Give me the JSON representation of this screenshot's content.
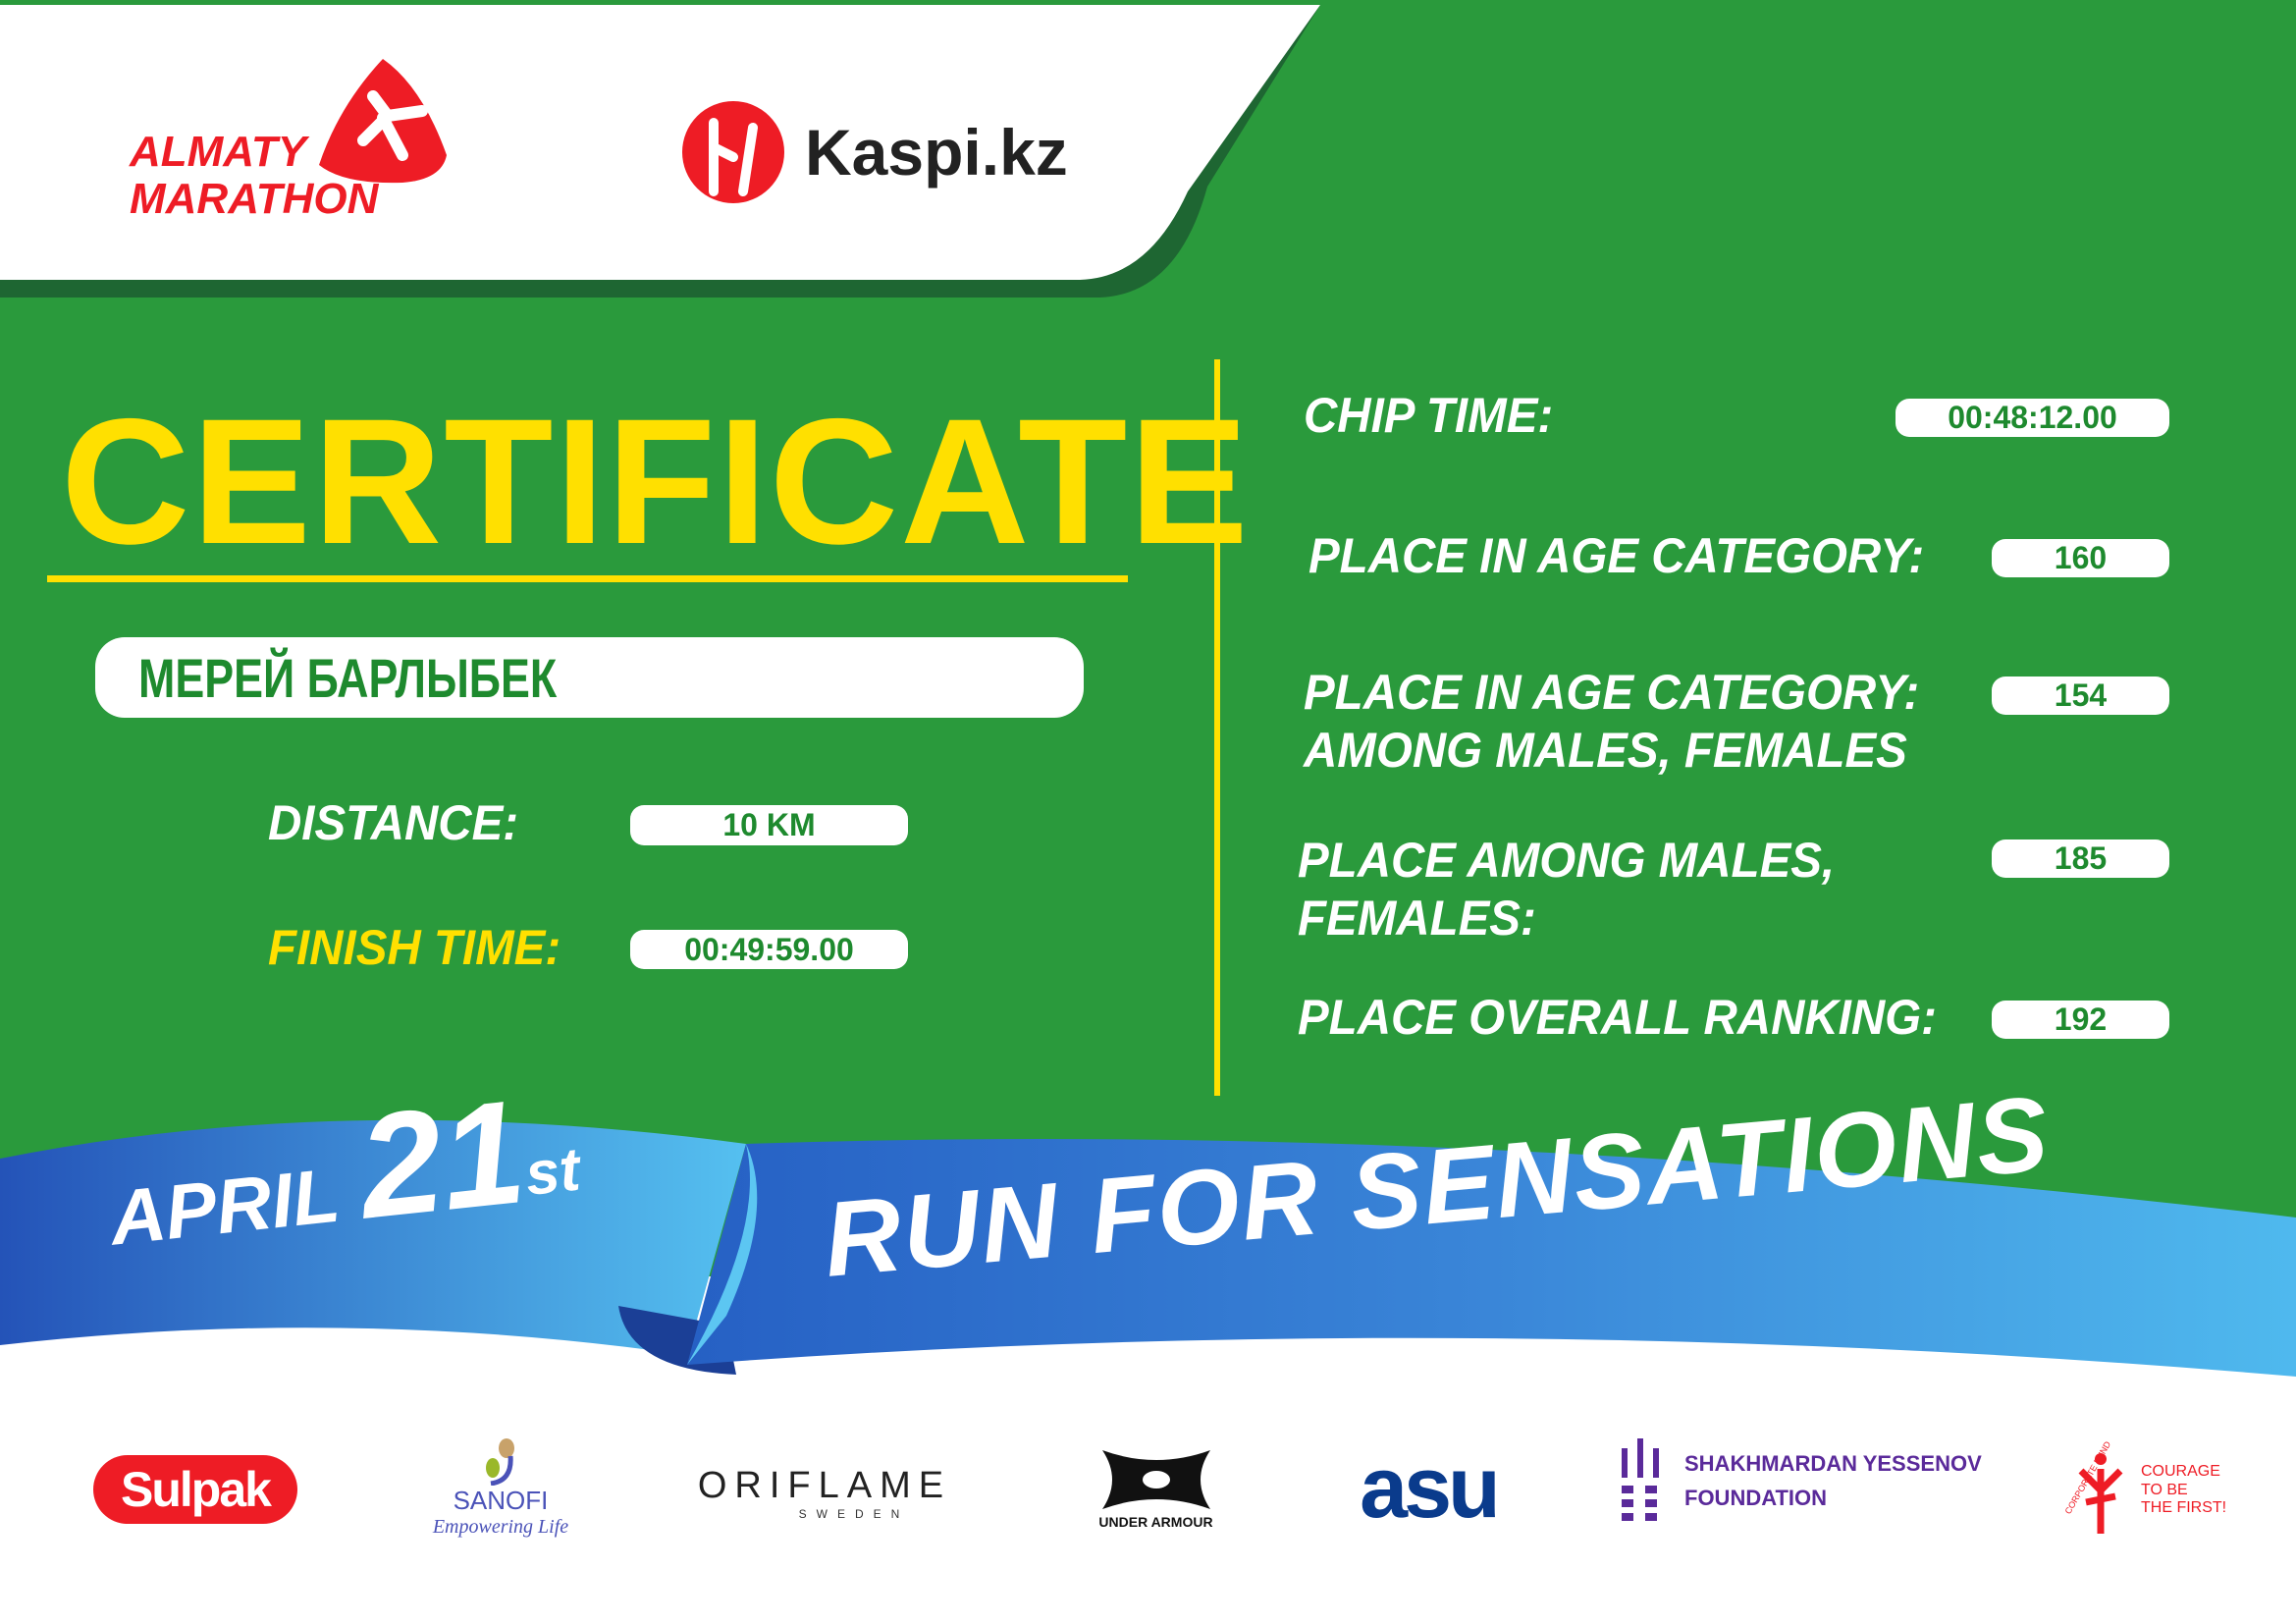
{
  "header": {
    "event_logo": "ALMATY MARATHON",
    "event_logo_line1": "ALMATY",
    "event_logo_line2": "MARATHON",
    "sponsor_logo": "Kaspi.kz"
  },
  "certificate": {
    "title": "CERTIFICATE",
    "participant_name": "МЕРЕЙ БАРЛЫБЕК",
    "distance_label": "DISTANCE:",
    "distance_value": "10 KM",
    "finish_time_label": "FINISH TIME:",
    "finish_time_value": "00:49:59.00",
    "chip_time_label": "CHIP TIME:",
    "chip_time_value": "00:48:12.00",
    "age_category_label": "PLACE IN AGE CATEGORY:",
    "age_category_value": "160",
    "age_gender_label_1": "PLACE IN AGE CATEGORY:",
    "age_gender_label_2": "AMONG MALES, FEMALES",
    "age_gender_value": "154",
    "gender_label_1": "PLACE AMONG MALES,",
    "gender_label_2": "FEMALES:",
    "gender_value": "185",
    "overall_label": "PLACE OVERALL RANKING:",
    "overall_value": "192"
  },
  "ribbon": {
    "month": "APRIL",
    "day": "21",
    "suffix": "st",
    "slogan": "RUN FOR SENSATIONS"
  },
  "sponsors": {
    "sulpak": "Sulpak",
    "sanofi": "SANOFI",
    "sanofi_tag": "Empowering Life",
    "oriflame": "ORIFLAME",
    "oriflame_sub": "SWEDEN",
    "under_armour": "UNDER ARMOUR",
    "asu": "asu",
    "yessenov_1": "SHAKHMARDAN YESSENOV",
    "yessenov_2": "FOUNDATION",
    "fund_arc": "CORPORATE FUND",
    "fund_1": "COURAGE",
    "fund_2": "TO BE",
    "fund_3": "THE FIRST!"
  },
  "colors": {
    "green": "#2a9a3c",
    "dark_green": "#1e6632",
    "yellow": "#ffe000",
    "red": "#ee1c25",
    "blue": "#2f7fd6"
  }
}
